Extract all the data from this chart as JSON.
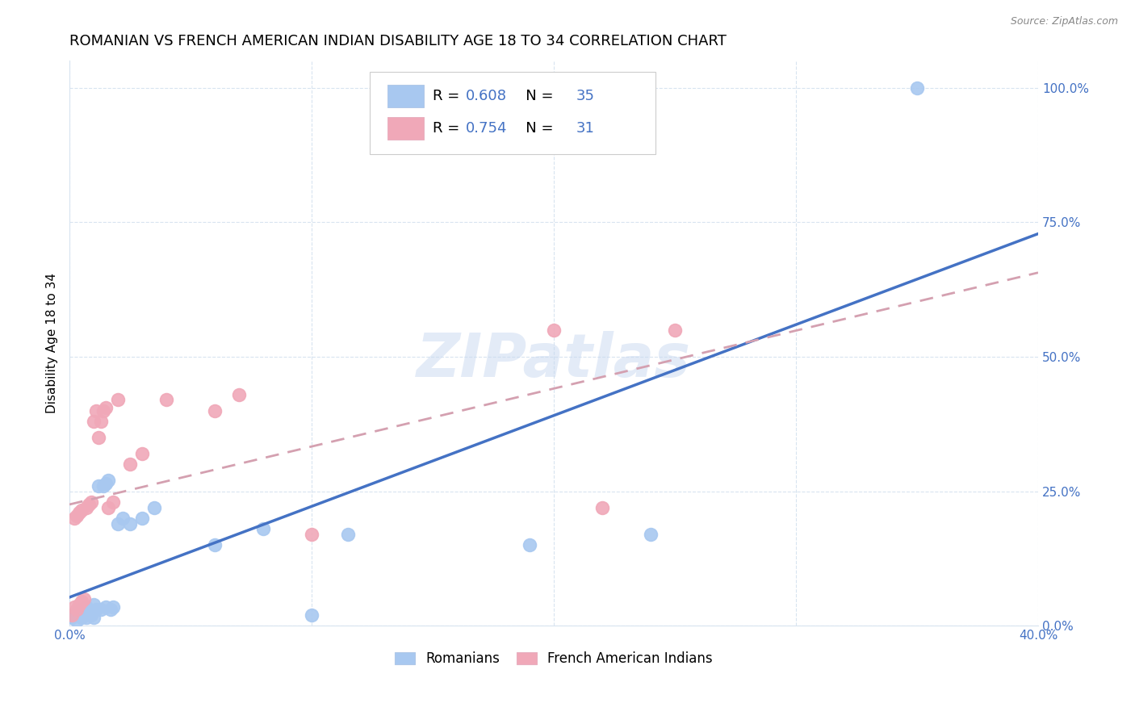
{
  "title": "ROMANIAN VS FRENCH AMERICAN INDIAN DISABILITY AGE 18 TO 34 CORRELATION CHART",
  "source": "Source: ZipAtlas.com",
  "ylabel": "Disability Age 18 to 34",
  "xmin": 0.0,
  "xmax": 40.0,
  "ymin": 0.0,
  "ymax": 105.0,
  "xticks": [
    0.0,
    10.0,
    20.0,
    30.0,
    40.0
  ],
  "xtick_labels": [
    "0.0%",
    "",
    "",
    "",
    "40.0%"
  ],
  "yticks": [
    0.0,
    25.0,
    50.0,
    75.0,
    100.0
  ],
  "ytick_labels": [
    "0.0%",
    "25.0%",
    "50.0%",
    "75.0%",
    "100.0%"
  ],
  "blue_color": "#a8c8f0",
  "pink_color": "#f0a8b8",
  "blue_line_color": "#4472c4",
  "pink_line_color": "#d4a0b0",
  "blue_scatter": [
    [
      0.1,
      1.5
    ],
    [
      0.2,
      2.0
    ],
    [
      0.3,
      1.0
    ],
    [
      0.3,
      2.5
    ],
    [
      0.4,
      2.0
    ],
    [
      0.5,
      1.5
    ],
    [
      0.5,
      3.0
    ],
    [
      0.6,
      2.0
    ],
    [
      0.7,
      1.5
    ],
    [
      0.7,
      3.5
    ],
    [
      0.8,
      2.5
    ],
    [
      0.9,
      2.0
    ],
    [
      1.0,
      4.0
    ],
    [
      1.0,
      1.5
    ],
    [
      1.1,
      3.0
    ],
    [
      1.2,
      26.0
    ],
    [
      1.3,
      3.0
    ],
    [
      1.4,
      26.0
    ],
    [
      1.5,
      3.5
    ],
    [
      1.5,
      26.5
    ],
    [
      1.6,
      27.0
    ],
    [
      1.7,
      3.0
    ],
    [
      1.8,
      3.5
    ],
    [
      2.0,
      19.0
    ],
    [
      2.2,
      20.0
    ],
    [
      2.5,
      19.0
    ],
    [
      3.0,
      20.0
    ],
    [
      3.5,
      22.0
    ],
    [
      6.0,
      15.0
    ],
    [
      8.0,
      18.0
    ],
    [
      10.0,
      2.0
    ],
    [
      11.5,
      17.0
    ],
    [
      19.0,
      15.0
    ],
    [
      24.0,
      17.0
    ],
    [
      35.0,
      100.0
    ]
  ],
  "pink_scatter": [
    [
      0.1,
      2.0
    ],
    [
      0.2,
      3.5
    ],
    [
      0.2,
      20.0
    ],
    [
      0.3,
      3.0
    ],
    [
      0.3,
      20.5
    ],
    [
      0.4,
      4.0
    ],
    [
      0.4,
      21.0
    ],
    [
      0.5,
      4.5
    ],
    [
      0.5,
      21.5
    ],
    [
      0.6,
      5.0
    ],
    [
      0.7,
      22.0
    ],
    [
      0.8,
      22.5
    ],
    [
      0.9,
      23.0
    ],
    [
      1.0,
      38.0
    ],
    [
      1.1,
      40.0
    ],
    [
      1.2,
      35.0
    ],
    [
      1.3,
      38.0
    ],
    [
      1.4,
      40.0
    ],
    [
      1.5,
      40.5
    ],
    [
      1.6,
      22.0
    ],
    [
      1.8,
      23.0
    ],
    [
      2.0,
      42.0
    ],
    [
      2.5,
      30.0
    ],
    [
      3.0,
      32.0
    ],
    [
      4.0,
      42.0
    ],
    [
      6.0,
      40.0
    ],
    [
      7.0,
      43.0
    ],
    [
      10.0,
      17.0
    ],
    [
      20.0,
      55.0
    ],
    [
      22.0,
      22.0
    ],
    [
      25.0,
      55.0
    ]
  ],
  "blue_R": "0.608",
  "blue_N": "35",
  "pink_R": "0.754",
  "pink_N": "31",
  "legend_label_blue": "Romanians",
  "legend_label_pink": "French American Indians",
  "watermark": "ZIPatlas",
  "background_color": "#ffffff",
  "grid_color": "#d8e4f0",
  "tick_color": "#4472c4",
  "title_color": "#000000",
  "source_color": "#888888"
}
